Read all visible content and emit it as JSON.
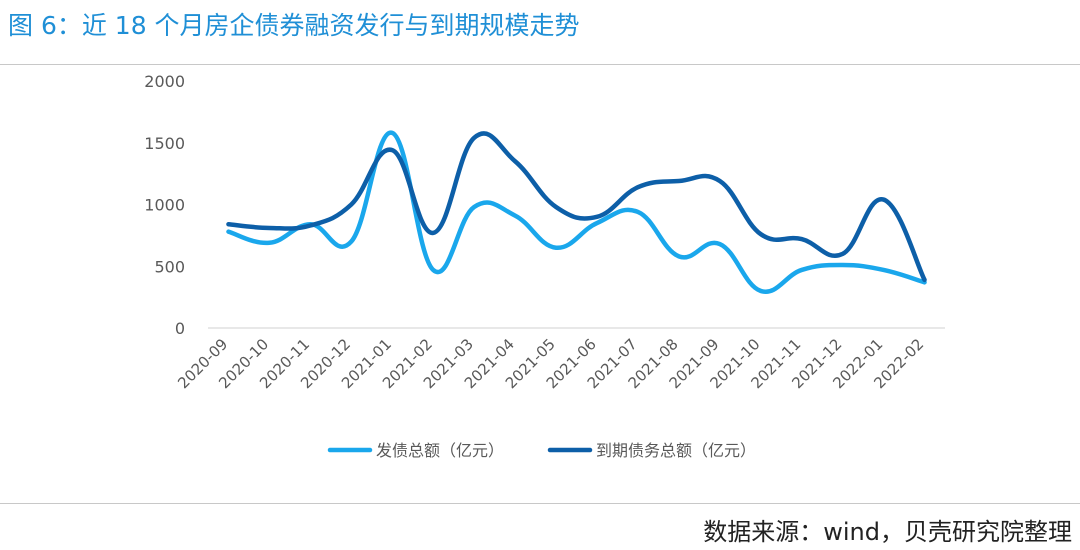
{
  "title": "图 6：近 18 个月房企债券融资发行与到期规模走势",
  "source": "数据来源：wind，贝壳研究院整理",
  "chart_data": {
    "type": "line",
    "title": "",
    "xlabel": "",
    "ylabel": "",
    "ylim": [
      0,
      2000
    ],
    "yticks": [
      0,
      500,
      1000,
      1500,
      2000
    ],
    "grid": false,
    "legend_position": "bottom",
    "smooth": true,
    "categories": [
      "2020-09",
      "2020-10",
      "2020-11",
      "2020-12",
      "2021-01",
      "2021-02",
      "2021-03",
      "2021-04",
      "2021-05",
      "2021-06",
      "2021-07",
      "2021-08",
      "2021-09",
      "2021-10",
      "2021-11",
      "2021-12",
      "2022-01",
      "2022-02"
    ],
    "series": [
      {
        "name": "发债总额（亿元）",
        "color": "#1aa7ec",
        "values": [
          780,
          690,
          840,
          700,
          1580,
          470,
          980,
          910,
          650,
          850,
          940,
          580,
          680,
          300,
          470,
          510,
          470,
          370
        ]
      },
      {
        "name": "到期债务总额（亿元）",
        "color": "#0d5fa8",
        "values": [
          840,
          810,
          830,
          1000,
          1440,
          770,
          1540,
          1350,
          980,
          900,
          1140,
          1190,
          1190,
          760,
          720,
          600,
          1040,
          390
        ]
      }
    ]
  }
}
